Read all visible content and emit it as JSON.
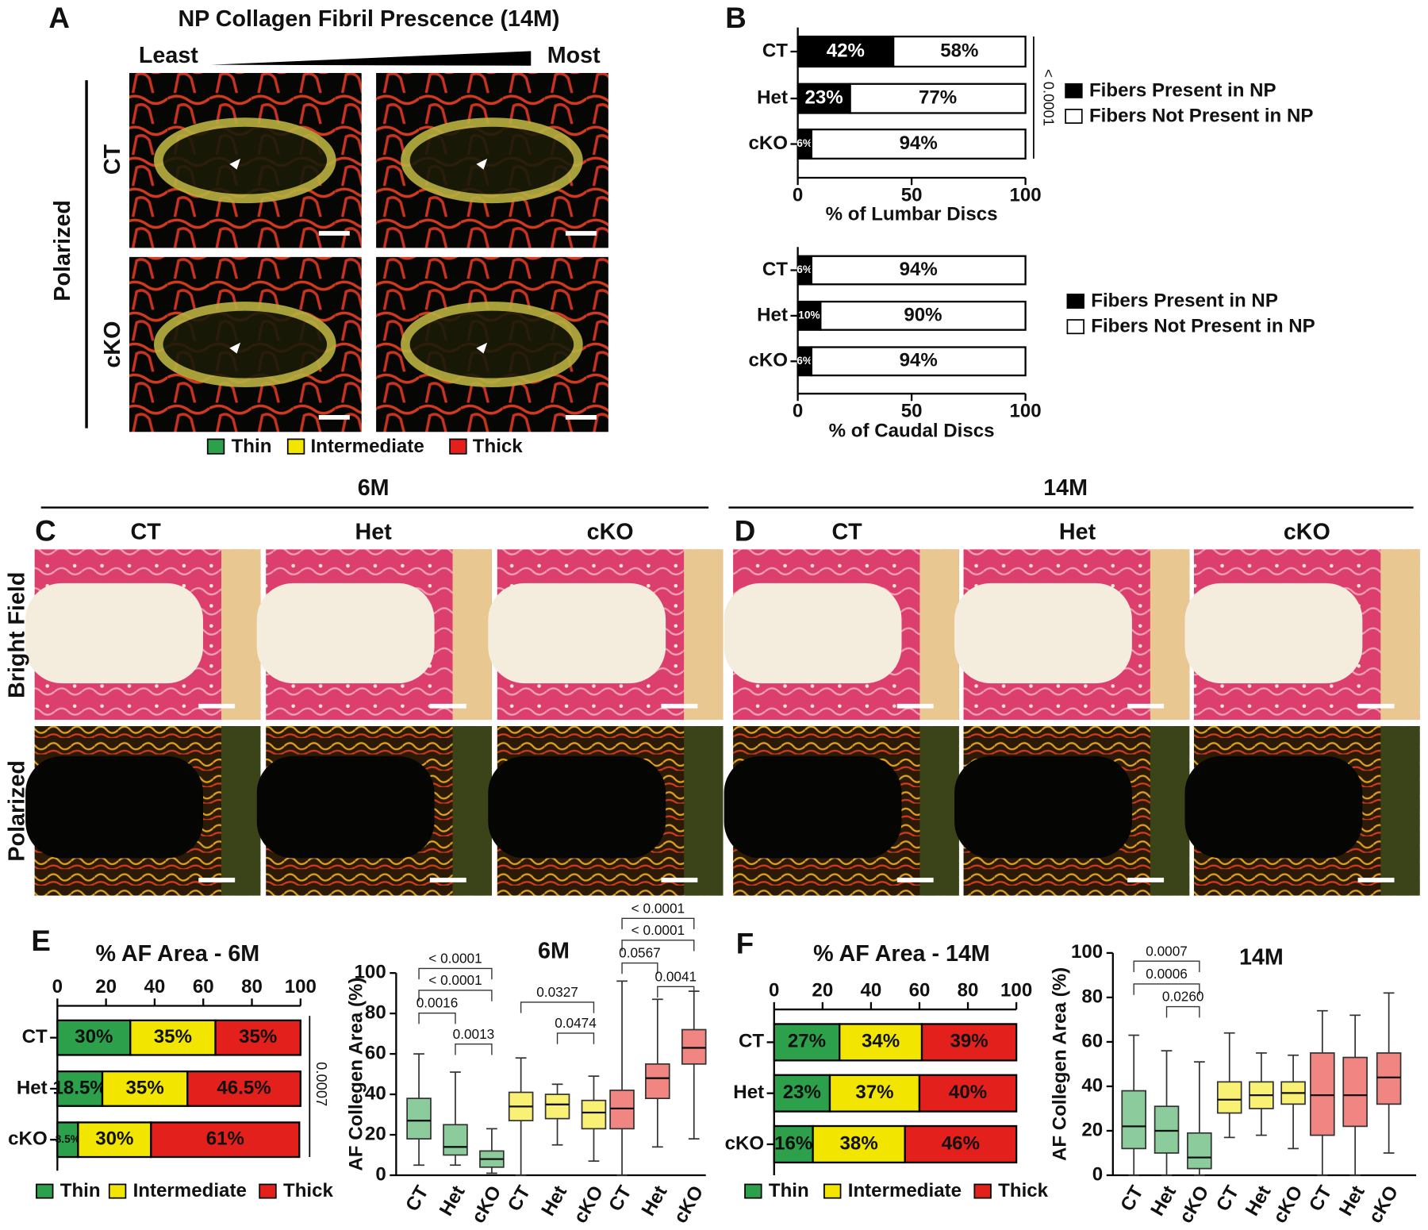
{
  "panels": {
    "A": {
      "letter": "A",
      "title": "NP Collagen Fibril Prescence (14M)",
      "least": "Least",
      "most": "Most",
      "group": "Polarized",
      "rows": [
        "CT",
        "cKO"
      ],
      "legend": [
        "Thin",
        "Intermediate",
        "Thick"
      ],
      "legend_colors": [
        "#2ca04a",
        "#f2e600",
        "#e3201b"
      ]
    },
    "B": {
      "letter": "B"
    },
    "C": {
      "letter": "C",
      "age": "6M",
      "columns": [
        "CT",
        "Het",
        "cKO"
      ]
    },
    "D": {
      "letter": "D",
      "age": "14M",
      "columns": [
        "CT",
        "Het",
        "cKO"
      ]
    },
    "rows": [
      "Bright Field",
      "Polarized"
    ],
    "E": {
      "letter": "E"
    },
    "F": {
      "letter": "F"
    }
  },
  "chart_data": [
    {
      "type": "stacked_bar",
      "categories": [
        "CT",
        "Het",
        "cKO"
      ],
      "series": [
        {
          "name": "Fibers Present in NP",
          "color": "#000000",
          "values": [
            42,
            23,
            6
          ],
          "value_labels": [
            "42%",
            "23%",
            "6%"
          ]
        },
        {
          "name": "Fibers Not Present in NP",
          "color": "#ffffff",
          "values": [
            58,
            77,
            94
          ],
          "value_labels": [
            "58%",
            "77%",
            "94%"
          ]
        }
      ],
      "xlim": [
        0,
        100
      ],
      "xticks": [
        0,
        50,
        100
      ],
      "xlabel": "% of Lumbar Discs",
      "annotation": "< 0.0001"
    },
    {
      "type": "stacked_bar",
      "categories": [
        "CT",
        "Het",
        "cKO"
      ],
      "series": [
        {
          "name": "Fibers Present in NP",
          "color": "#000000",
          "values": [
            6,
            10,
            6
          ],
          "value_labels": [
            "6%",
            "10%",
            "6%"
          ]
        },
        {
          "name": "Fibers Not Present in NP",
          "color": "#ffffff",
          "values": [
            94,
            90,
            94
          ],
          "value_labels": [
            "94%",
            "90%",
            "94%"
          ]
        }
      ],
      "xlim": [
        0,
        100
      ],
      "xticks": [
        0,
        50,
        100
      ],
      "xlabel": "% of Caudal Discs"
    },
    {
      "type": "stacked_bar",
      "title": "% AF Area - 6M",
      "categories": [
        "CT",
        "Het",
        "cKO"
      ],
      "series": [
        {
          "name": "Thin",
          "color": "#2ca04a",
          "values": [
            30,
            18.5,
            8.5
          ],
          "value_labels": [
            "30%",
            "18.5%",
            "8.5%"
          ]
        },
        {
          "name": "Intermediate",
          "color": "#f2e600",
          "values": [
            35,
            35,
            30
          ],
          "value_labels": [
            "35%",
            "35%",
            "30%"
          ]
        },
        {
          "name": "Thick",
          "color": "#e3201b",
          "values": [
            35,
            46.5,
            61
          ],
          "value_labels": [
            "35%",
            "46.5%",
            "61%"
          ]
        }
      ],
      "xlim": [
        0,
        100
      ],
      "xticks": [
        0,
        20,
        40,
        60,
        80,
        100
      ],
      "annotation": "0.0007"
    },
    {
      "type": "box",
      "title": "6M",
      "ylabel": "AF Collegen Area (%)",
      "categories": [
        "CT",
        "Het",
        "cKO",
        "CT",
        "Het",
        "cKO",
        "CT",
        "Het",
        "cKO"
      ],
      "boxes": [
        {
          "color": "#2ca04a",
          "min": 5,
          "q1": 18,
          "median": 27,
          "q3": 38,
          "max": 60
        },
        {
          "color": "#2ca04a",
          "min": 5,
          "q1": 10,
          "median": 14,
          "q3": 25,
          "max": 51
        },
        {
          "color": "#2ca04a",
          "min": 1,
          "q1": 4,
          "median": 8,
          "q3": 12,
          "max": 23
        },
        {
          "color": "#f2e600",
          "min": 0,
          "q1": 27,
          "median": 34,
          "q3": 41,
          "max": 58
        },
        {
          "color": "#f2e600",
          "min": 15,
          "q1": 28,
          "median": 35,
          "q3": 40,
          "max": 45
        },
        {
          "color": "#f2e600",
          "min": 7,
          "q1": 23,
          "median": 31,
          "q3": 37,
          "max": 49
        },
        {
          "color": "#e3201b",
          "min": 0,
          "q1": 23,
          "median": 33,
          "q3": 42,
          "max": 96
        },
        {
          "color": "#e3201b",
          "min": 14,
          "q1": 38,
          "median": 48,
          "q3": 55,
          "max": 87
        },
        {
          "color": "#e3201b",
          "min": 18,
          "q1": 55,
          "median": 63,
          "q3": 72,
          "max": 91
        }
      ],
      "ylim": [
        0,
        100
      ],
      "yticks": [
        0,
        20,
        40,
        60,
        80,
        100
      ],
      "annotations": [
        "< 0.0001",
        "< 0.0001",
        "0.0016",
        "0.0013",
        "0.0327",
        "0.0474",
        "< 0.0001",
        "< 0.0001",
        "0.0567",
        "0.0041"
      ]
    },
    {
      "type": "stacked_bar",
      "title": "% AF Area - 14M",
      "categories": [
        "CT",
        "Het",
        "cKO"
      ],
      "series": [
        {
          "name": "Thin",
          "color": "#2ca04a",
          "values": [
            27,
            23,
            16
          ],
          "value_labels": [
            "27%",
            "23%",
            "16%"
          ]
        },
        {
          "name": "Intermediate",
          "color": "#f2e600",
          "values": [
            34,
            37,
            38
          ],
          "value_labels": [
            "34%",
            "37%",
            "38%"
          ]
        },
        {
          "name": "Thick",
          "color": "#e3201b",
          "values": [
            39,
            40,
            46
          ],
          "value_labels": [
            "39%",
            "40%",
            "46%"
          ]
        }
      ],
      "xlim": [
        0,
        100
      ],
      "xticks": [
        0,
        20,
        40,
        60,
        80,
        100
      ]
    },
    {
      "type": "box",
      "title": "14M",
      "ylabel": "AF Collegen Area (%)",
      "categories": [
        "CT",
        "Het",
        "cKO",
        "CT",
        "Het",
        "cKO",
        "CT",
        "Het",
        "cKO"
      ],
      "boxes": [
        {
          "color": "#2ca04a",
          "min": 0,
          "q1": 12,
          "median": 22,
          "q3": 38,
          "max": 63
        },
        {
          "color": "#2ca04a",
          "min": 0,
          "q1": 10,
          "median": 20,
          "q3": 31,
          "max": 56
        },
        {
          "color": "#2ca04a",
          "min": 0,
          "q1": 3,
          "median": 8,
          "q3": 19,
          "max": 51
        },
        {
          "color": "#f2e600",
          "min": 17,
          "q1": 28,
          "median": 34,
          "q3": 42,
          "max": 64
        },
        {
          "color": "#f2e600",
          "min": 18,
          "q1": 30,
          "median": 36,
          "q3": 42,
          "max": 55
        },
        {
          "color": "#f2e600",
          "min": 12,
          "q1": 32,
          "median": 37,
          "q3": 42,
          "max": 54
        },
        {
          "color": "#e3201b",
          "min": 0,
          "q1": 18,
          "median": 36,
          "q3": 55,
          "max": 74
        },
        {
          "color": "#e3201b",
          "min": 0,
          "q1": 22,
          "median": 36,
          "q3": 53,
          "max": 72
        },
        {
          "color": "#e3201b",
          "min": 10,
          "q1": 32,
          "median": 44,
          "q3": 55,
          "max": 82
        }
      ],
      "ylim": [
        0,
        100
      ],
      "yticks": [
        0,
        20,
        40,
        60,
        80,
        100
      ],
      "annotations": [
        "0.0007",
        "0.0006",
        "0.0260"
      ]
    }
  ]
}
